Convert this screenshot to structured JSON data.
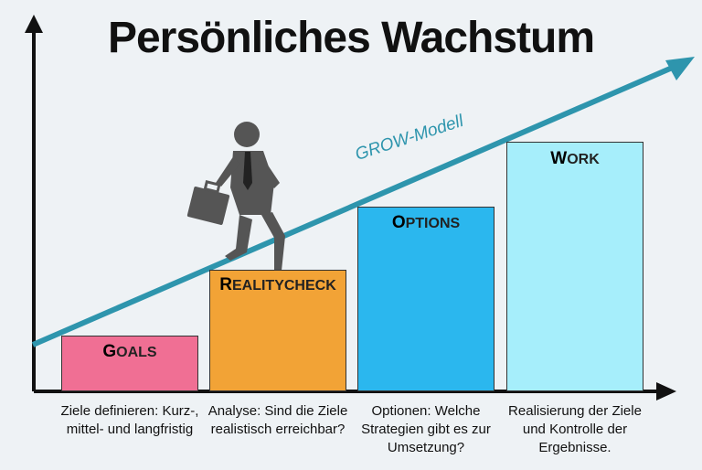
{
  "title": "Persönliches Wachstum",
  "arrow_label": "GROW-Modell",
  "steps": [
    {
      "initial": "G",
      "rest": "OALS",
      "color": "#f06f94",
      "caption": "Ziele definieren: Kurz-, mittel- und langfristig"
    },
    {
      "initial": "R",
      "rest": "EALITYCHECK",
      "color": "#f2a336",
      "caption": "Analyse: Sind die Ziele realistisch erreichbar?"
    },
    {
      "initial": "O",
      "rest": "PTIONS",
      "color": "#2bb7ee",
      "caption": "Optionen: Welche Strategien gibt es zur Umsetzung?"
    },
    {
      "initial": "W",
      "rest": "ORK",
      "color": "#a6eefb",
      "caption": "Realisierung der Ziele und Kontrolle der Ergebnisse."
    }
  ],
  "colors": {
    "arrow": "#2e95ad",
    "axis": "#111111",
    "figure": "#555555"
  },
  "icons": [
    "businessman-walking-icon",
    "briefcase-icon"
  ]
}
